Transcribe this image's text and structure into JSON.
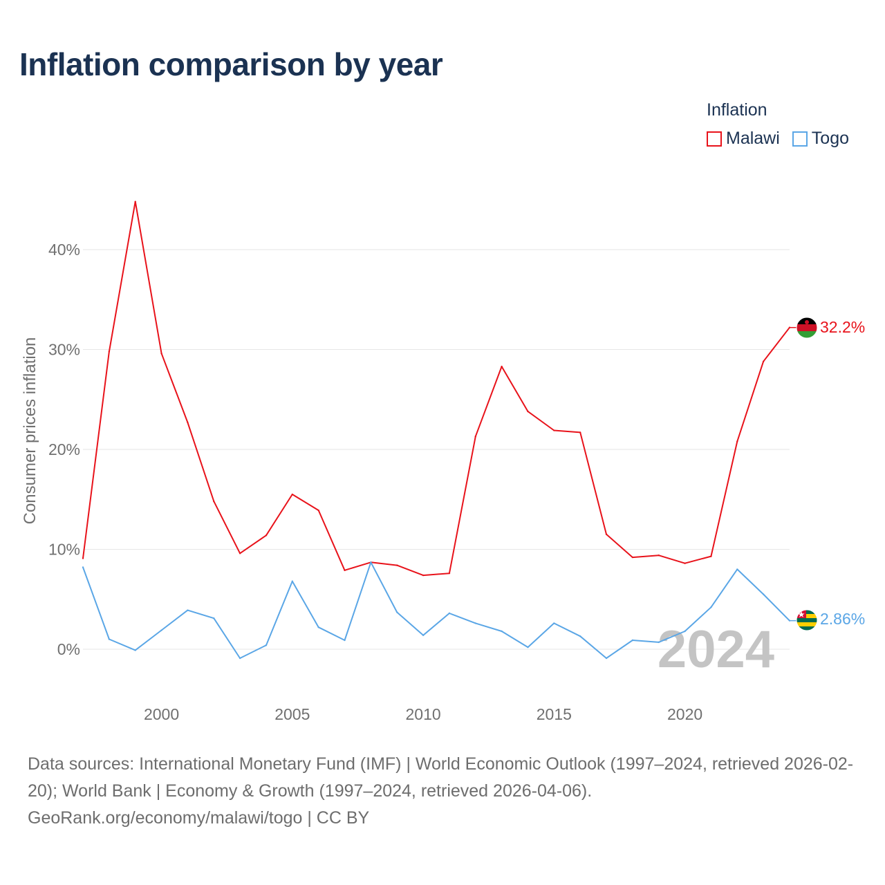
{
  "title": "Inflation comparison by year",
  "legend": {
    "title": "Inflation",
    "items": [
      {
        "label": "Malawi",
        "color": "#e8121a"
      },
      {
        "label": "Togo",
        "color": "#5aa6e6"
      }
    ]
  },
  "year_watermark": "2024",
  "end_labels": {
    "malawi": "32.2%",
    "togo": "2.86%"
  },
  "sources": {
    "line1": "Data sources: International Monetary Fund (IMF) | World Economic Outlook (1997–2024, retrieved 2026-02-20); World Bank | Economy & Growth (1997–2024, retrieved 2026-04-06).",
    "line2": "GeoRank.org/economy/malawi/togo | CC BY"
  },
  "chart_data": {
    "type": "line",
    "title": "Inflation comparison by year",
    "xlabel": "",
    "ylabel": "Consumer prices inflation",
    "xlim": [
      1997,
      2024
    ],
    "ylim": [
      -5,
      50
    ],
    "x_ticks": [
      2000,
      2005,
      2010,
      2015,
      2020
    ],
    "x_tick_labels": [
      "2000",
      "2005",
      "2010",
      "2015",
      "2020"
    ],
    "y_ticks": [
      0,
      10,
      20,
      30,
      40
    ],
    "y_tick_labels": [
      "0%",
      "10%",
      "20%",
      "30%",
      "40%"
    ],
    "grid": true,
    "x": [
      1997,
      1998,
      1999,
      2000,
      2001,
      2002,
      2003,
      2004,
      2005,
      2006,
      2007,
      2008,
      2009,
      2010,
      2011,
      2012,
      2013,
      2014,
      2015,
      2016,
      2017,
      2018,
      2019,
      2020,
      2021,
      2022,
      2023,
      2024
    ],
    "series": [
      {
        "name": "Malawi",
        "color": "#e8121a",
        "values": [
          9.1,
          29.8,
          44.8,
          29.6,
          22.7,
          14.8,
          9.6,
          11.4,
          15.5,
          13.9,
          7.9,
          8.7,
          8.4,
          7.4,
          7.6,
          21.3,
          28.3,
          23.8,
          21.9,
          21.7,
          11.5,
          9.2,
          9.4,
          8.6,
          9.3,
          20.8,
          28.8,
          32.2
        ]
      },
      {
        "name": "Togo",
        "color": "#5aa6e6",
        "values": [
          8.2,
          1.0,
          -0.1,
          1.9,
          3.9,
          3.1,
          -0.9,
          0.4,
          6.8,
          2.2,
          0.9,
          8.7,
          3.7,
          1.4,
          3.6,
          2.6,
          1.8,
          0.2,
          2.6,
          1.3,
          -0.9,
          0.9,
          0.7,
          1.8,
          4.2,
          8.0,
          5.5,
          2.86
        ]
      }
    ]
  }
}
